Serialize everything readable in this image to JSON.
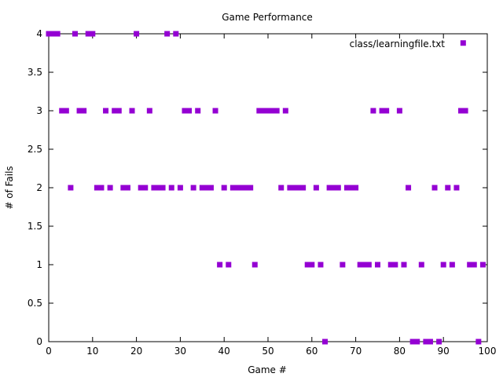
{
  "chart_data": {
    "type": "scatter",
    "title": "Game Performance",
    "xlabel": "Game #",
    "ylabel": "# of Fails",
    "xlim": [
      0,
      100
    ],
    "ylim": [
      0,
      4
    ],
    "xticks": [
      0,
      10,
      20,
      30,
      40,
      50,
      60,
      70,
      80,
      90,
      100
    ],
    "yticks": [
      0,
      0.5,
      1,
      1.5,
      2,
      2.5,
      3,
      3.5,
      4
    ],
    "ytick_labels": [
      "0",
      "0.5",
      "1",
      "1.5",
      "2",
      "2.5",
      "3",
      "3.5",
      "4"
    ],
    "grid": false,
    "legend_position": "top-right",
    "series": [
      {
        "name": "class/learningfile.txt",
        "color": "#9400d3",
        "marker": "square",
        "x": [
          0,
          1,
          2,
          3,
          4,
          5,
          6,
          7,
          8,
          9,
          10,
          11,
          12,
          13,
          14,
          15,
          16,
          17,
          18,
          19,
          20,
          21,
          22,
          23,
          24,
          25,
          26,
          27,
          28,
          29,
          30,
          31,
          32,
          33,
          34,
          35,
          36,
          37,
          38,
          39,
          40,
          41,
          42,
          43,
          44,
          45,
          46,
          47,
          48,
          49,
          50,
          51,
          52,
          53,
          54,
          55,
          56,
          57,
          58,
          59,
          60,
          61,
          62,
          63,
          64,
          65,
          66,
          67,
          68,
          69,
          70,
          71,
          72,
          73,
          74,
          75,
          76,
          77,
          78,
          79,
          80,
          81,
          82,
          83,
          84,
          85,
          86,
          87,
          88,
          89,
          90,
          91,
          92,
          93,
          94,
          95,
          96,
          97,
          98,
          99
        ],
        "y": [
          4,
          4,
          4,
          3,
          3,
          2,
          4,
          3,
          3,
          4,
          4,
          2,
          2,
          3,
          2,
          3,
          3,
          2,
          2,
          3,
          4,
          2,
          2,
          3,
          2,
          2,
          2,
          4,
          2,
          4,
          2,
          3,
          3,
          2,
          3,
          2,
          2,
          2,
          3,
          1,
          2,
          1,
          2,
          2,
          2,
          2,
          2,
          1,
          3,
          3,
          3,
          3,
          3,
          2,
          3,
          2,
          2,
          2,
          2,
          1,
          1,
          2,
          1,
          0,
          2,
          2,
          2,
          1,
          2,
          2,
          2,
          1,
          1,
          1,
          3,
          1,
          3,
          3,
          1,
          1,
          3,
          1,
          2,
          0,
          0,
          1,
          0,
          0,
          2,
          0,
          1,
          2,
          1,
          2,
          3,
          3,
          1,
          1,
          0,
          1
        ]
      }
    ],
    "extra_points": [
      {
        "x": 94.5,
        "y": 3.88
      }
    ]
  }
}
